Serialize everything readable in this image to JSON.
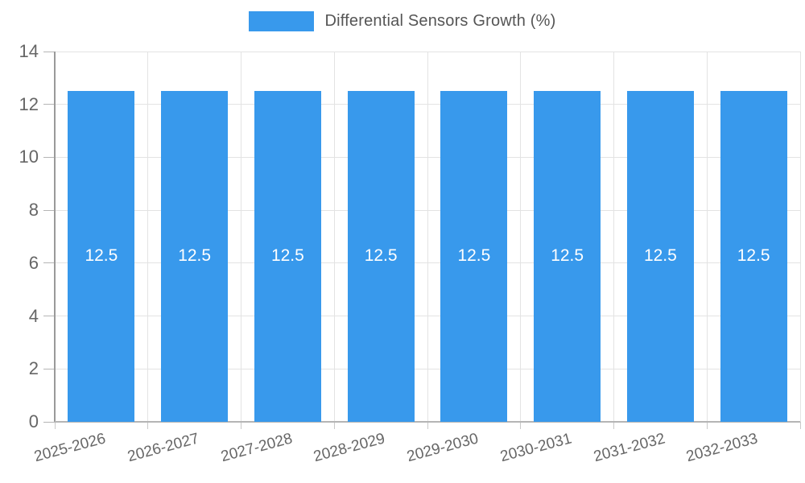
{
  "legend": {
    "label": "Differential Sensors Growth (%)"
  },
  "colors": {
    "bar": "#3899ec",
    "grid": "#e3e3e3",
    "y_axis_line": "#9a9a9a",
    "x_axis_line": "#b5b5b5",
    "tick_text": "#666666",
    "legend_text": "#555555",
    "bar_label_text": "#ffffff"
  },
  "chart_data": {
    "type": "bar",
    "title": "Differential Sensors Growth (%)",
    "categories": [
      "2025-2026",
      "2026-2027",
      "2027-2028",
      "2028-2029",
      "2029-2030",
      "2030-2031",
      "2031-2032",
      "2032-2033"
    ],
    "values": [
      12.5,
      12.5,
      12.5,
      12.5,
      12.5,
      12.5,
      12.5,
      12.5
    ],
    "bar_labels": [
      "12.5",
      "12.5",
      "12.5",
      "12.5",
      "12.5",
      "12.5",
      "12.5",
      "12.5"
    ],
    "xlabel": "",
    "ylabel": "",
    "ylim": [
      0,
      14
    ],
    "yticks": [
      0,
      2,
      4,
      6,
      8,
      10,
      12,
      14
    ],
    "grid": true,
    "legend_position": "top",
    "x_label_rotation_deg": -15
  }
}
